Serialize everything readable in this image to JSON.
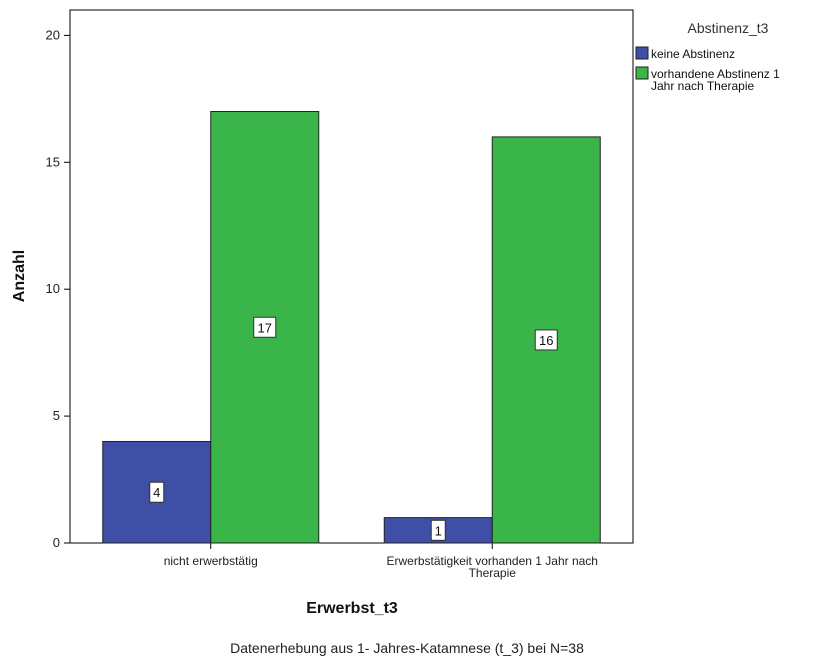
{
  "chart_data": {
    "type": "bar",
    "categories": [
      "nicht erwerbstätig",
      "Erwerbstätigkeit vorhanden 1 Jahr nach Therapie"
    ],
    "category_lines": [
      [
        "nicht erwerbstätig"
      ],
      [
        "Erwerbstätigkeit vorhanden 1 Jahr nach",
        "Therapie"
      ]
    ],
    "series": [
      {
        "name": "keine Abstinenz",
        "values": [
          4,
          1
        ],
        "color": "#3e4fa5"
      },
      {
        "name": "vorhandene Abstinenz 1 Jahr nach Therapie",
        "name_lines": [
          "vorhandene Abstinenz 1",
          "Jahr nach Therapie"
        ],
        "values": [
          17,
          16
        ],
        "color": "#3ab54a"
      }
    ],
    "xlabel": "Erwerbst_t3",
    "ylabel": "Anzahl",
    "ylim": [
      0,
      21
    ],
    "yticks": [
      0,
      5,
      10,
      15,
      20
    ],
    "legend_title": "Abstinenz_t3",
    "legend_position": "top-right",
    "grid": false,
    "note": "Datenerhebung aus 1- Jahres-Katamnese (t_3) bei N=38"
  }
}
